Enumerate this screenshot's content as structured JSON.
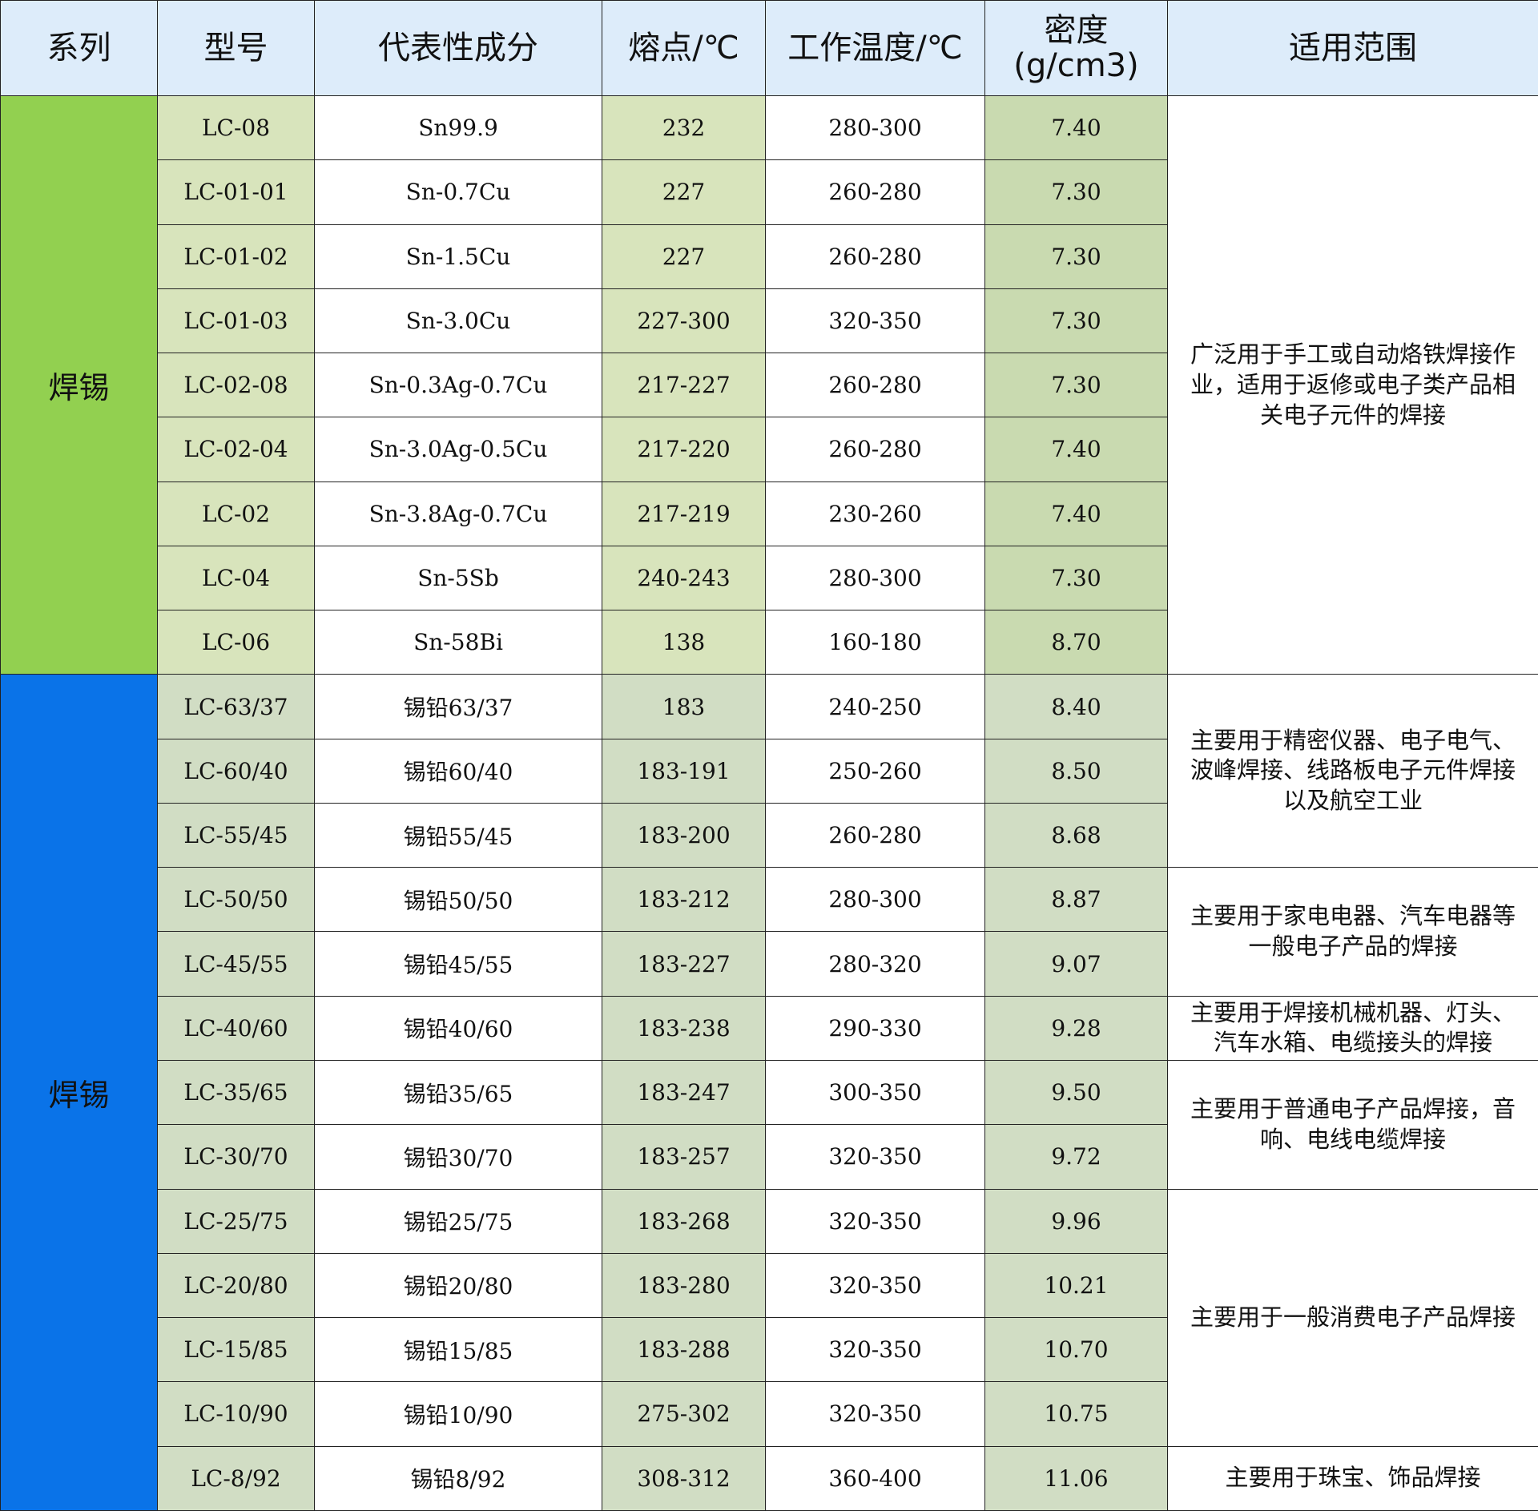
{
  "table": {
    "header": [
      "系列",
      "型号",
      "代表性成分",
      "熔点/℃",
      "工作温度/℃",
      "密度\n(g/cm3)",
      "适用范围"
    ],
    "series": [
      {
        "name": "焊锡",
        "usage_groups": [
          {
            "text": "广泛用于手工或自动烙铁焊接作业，适用于返修或电子类产品相关电子元件的焊接",
            "rows": [
              [
                "LC-08",
                "Sn99.9",
                "232",
                "280-300",
                "7.40"
              ],
              [
                "LC-01-01",
                "Sn-0.7Cu",
                "227",
                "260-280",
                "7.30"
              ],
              [
                "LC-01-02",
                "Sn-1.5Cu",
                "227",
                "260-280",
                "7.30"
              ],
              [
                "LC-01-03",
                "Sn-3.0Cu",
                "227-300",
                "320-350",
                "7.30"
              ],
              [
                "LC-02-08",
                "Sn-0.3Ag-0.7Cu",
                "217-227",
                "260-280",
                "7.30"
              ],
              [
                "LC-02-04",
                "Sn-3.0Ag-0.5Cu",
                "217-220",
                "260-280",
                "7.40"
              ],
              [
                "LC-02",
                "Sn-3.8Ag-0.7Cu",
                "217-219",
                "230-260",
                "7.40"
              ],
              [
                "LC-04",
                "Sn-5Sb",
                "240-243",
                "280-300",
                "7.30"
              ],
              [
                "LC-06",
                "Sn-58Bi",
                "138",
                "160-180",
                "8.70"
              ]
            ]
          }
        ]
      },
      {
        "name": "焊锡",
        "usage_groups": [
          {
            "text": "主要用于精密仪器、电子电气、波峰焊接、线路板电子元件焊接以及航空工业",
            "rows": [
              [
                "LC-63/37",
                "锡铅63/37",
                "183",
                "240-250",
                "8.40"
              ],
              [
                "LC-60/40",
                "锡铅60/40",
                "183-191",
                "250-260",
                "8.50"
              ],
              [
                "LC-55/45",
                "锡铅55/45",
                "183-200",
                "260-280",
                "8.68"
              ]
            ]
          },
          {
            "text": "主要用于家电电器、汽车电器等一般电子产品的焊接",
            "rows": [
              [
                "LC-50/50",
                "锡铅50/50",
                "183-212",
                "280-300",
                "8.87"
              ],
              [
                "LC-45/55",
                "锡铅45/55",
                "183-227",
                "280-320",
                "9.07"
              ]
            ]
          },
          {
            "text": "主要用于焊接机械机器、灯头、汽车水箱、电缆接头的焊接",
            "rows": [
              [
                "LC-40/60",
                "锡铅40/60",
                "183-238",
                "290-330",
                "9.28"
              ]
            ]
          },
          {
            "text": "主要用于普通电子产品焊接，音响、电线电缆焊接",
            "rows": [
              [
                "LC-35/65",
                "锡铅35/65",
                "183-247",
                "300-350",
                "9.50"
              ],
              [
                "LC-30/70",
                "锡铅30/70",
                "183-257",
                "320-350",
                "9.72"
              ]
            ]
          },
          {
            "text": "主要用于一般消费电子产品焊接",
            "rows": [
              [
                "LC-25/75",
                "锡铅25/75",
                "183-268",
                "320-350",
                "9.96"
              ],
              [
                "LC-20/80",
                "锡铅20/80",
                "183-280",
                "320-350",
                "10.21"
              ],
              [
                "LC-15/85",
                "锡铅15/85",
                "183-288",
                "320-350",
                "10.70"
              ],
              [
                "LC-10/90",
                "锡铅10/90",
                "275-302",
                "320-350",
                "10.75"
              ]
            ]
          },
          {
            "text": "主要用于珠宝、饰品焊接",
            "rows": [
              [
                "LC-8/92",
                "锡铅8/92",
                "308-312",
                "360-400",
                "11.06"
              ]
            ]
          }
        ]
      }
    ]
  }
}
